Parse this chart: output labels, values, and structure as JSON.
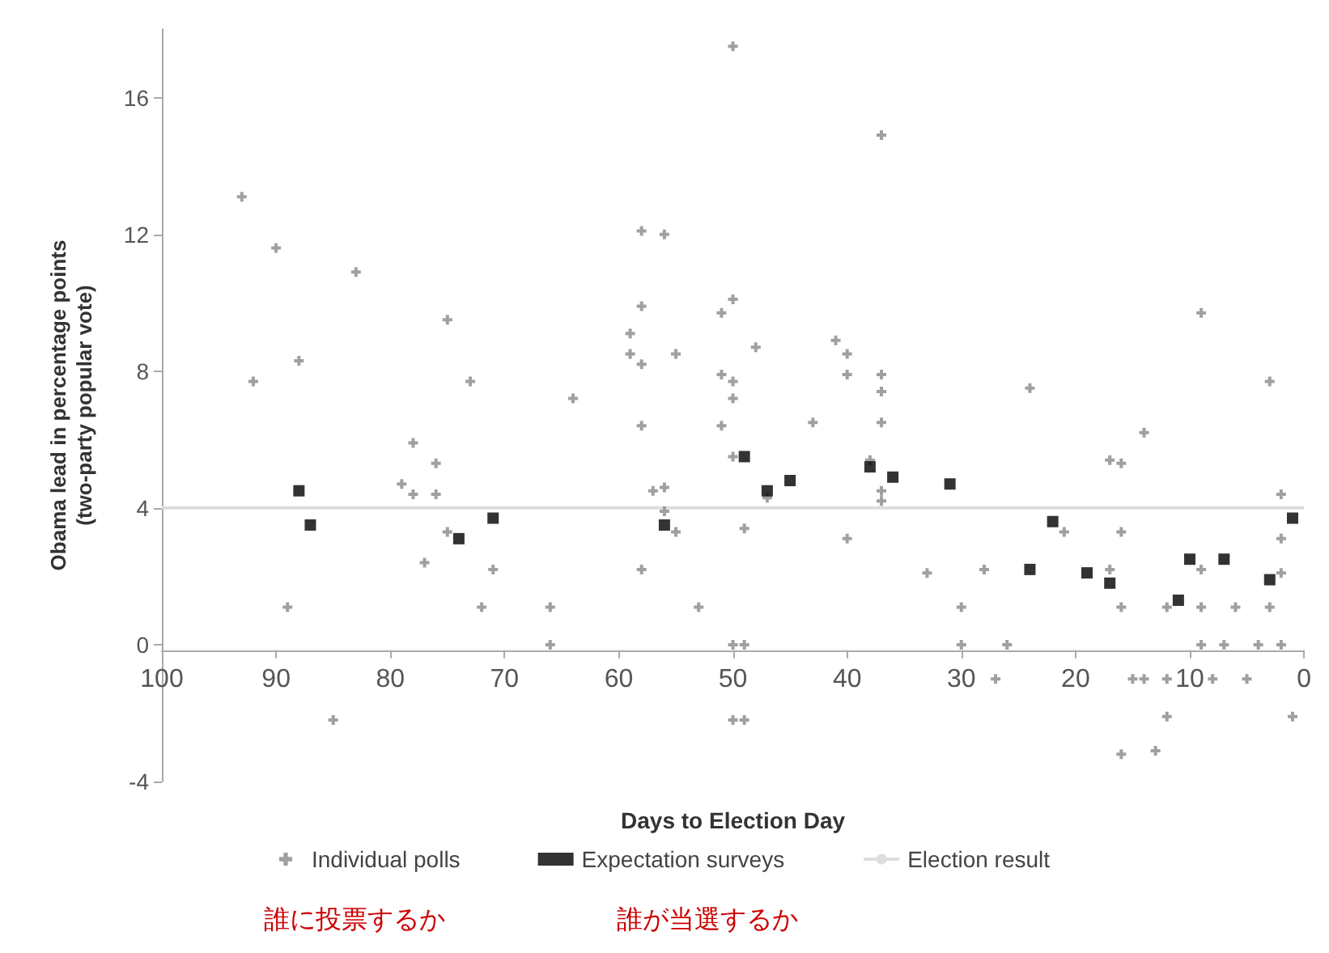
{
  "chart_data": {
    "type": "scatter",
    "xlabel": "Days to Election Day",
    "ylabel": "Obama lead in percentage points\n(two-party popular vote)",
    "xlim": [
      100,
      0
    ],
    "xticks": [
      100,
      90,
      80,
      70,
      60,
      50,
      40,
      30,
      20,
      10,
      0
    ],
    "ylim": [
      -4,
      18
    ],
    "yticks": [
      -4,
      0,
      4,
      8,
      12,
      16
    ],
    "grid": false,
    "legend": "bottom",
    "series": [
      {
        "name": "Individual polls",
        "marker": "cross",
        "color": "#888888",
        "x": [
          93,
          90,
          83,
          75,
          92,
          88,
          73,
          78,
          76,
          79,
          78,
          76,
          75,
          77,
          71,
          72,
          89,
          85,
          66,
          66,
          58,
          57,
          56,
          56,
          55,
          53,
          50,
          37,
          58,
          56,
          58,
          50,
          51,
          59,
          59,
          58,
          55,
          48,
          41,
          40,
          40,
          37,
          37,
          51,
          50,
          50,
          64,
          58,
          51,
          43,
          37,
          50,
          9,
          24,
          3,
          14,
          17,
          16,
          47,
          38,
          37,
          37,
          49,
          40,
          33,
          28,
          30,
          50,
          49,
          30,
          26,
          27,
          50,
          49,
          21,
          16,
          17,
          16,
          12,
          9,
          9,
          6,
          3,
          2,
          2,
          2,
          9,
          7,
          4,
          2,
          15,
          14,
          12,
          8,
          5,
          12,
          1,
          16,
          13
        ],
        "values": [
          13.1,
          11.6,
          10.9,
          9.5,
          7.7,
          8.3,
          7.7,
          5.9,
          5.3,
          4.7,
          4.4,
          4.4,
          3.3,
          2.4,
          2.2,
          1.1,
          1.1,
          -2.2,
          1.1,
          0,
          2.2,
          4.5,
          4.6,
          3.9,
          3.3,
          1.1,
          17.5,
          14.9,
          12.1,
          12.0,
          9.9,
          10.1,
          9.7,
          9.1,
          8.5,
          8.2,
          8.5,
          8.7,
          8.9,
          8.5,
          7.9,
          7.9,
          7.4,
          7.9,
          7.7,
          7.2,
          7.2,
          6.4,
          6.4,
          6.5,
          6.5,
          5.5,
          9.7,
          7.5,
          7.7,
          6.2,
          5.4,
          5.3,
          4.3,
          5.4,
          4.5,
          4.2,
          3.4,
          3.1,
          2.1,
          2.2,
          1.1,
          0,
          0,
          0,
          0,
          -1,
          -2.2,
          -2.2,
          3.3,
          3.3,
          2.2,
          1.1,
          1.1,
          2.2,
          1.1,
          1.1,
          1.1,
          3.1,
          4.4,
          2.1,
          0,
          0,
          0,
          0,
          -1,
          -1,
          -1,
          -1,
          -1,
          -2.1,
          -2.1,
          -3.2,
          -3.1
        ]
      },
      {
        "name": "Expectation surveys",
        "marker": "square",
        "color": "#000000",
        "x": [
          88,
          87,
          74,
          71,
          56,
          49,
          47,
          45,
          38,
          36,
          31,
          24,
          22,
          19,
          17,
          11,
          10,
          7,
          3,
          1
        ],
        "values": [
          4.5,
          3.5,
          3.1,
          3.7,
          3.5,
          5.5,
          4.5,
          4.8,
          5.2,
          4.9,
          4.7,
          2.2,
          3.6,
          2.1,
          1.8,
          1.3,
          2.5,
          2.5,
          1.9,
          3.7
        ]
      },
      {
        "name": "Election result",
        "type": "line",
        "marker": "none",
        "color": "#dddddd",
        "x": [
          100,
          0
        ],
        "values": [
          4,
          4
        ]
      }
    ],
    "annotations": [
      "誰に投票するか",
      "誰が当選するか"
    ]
  }
}
